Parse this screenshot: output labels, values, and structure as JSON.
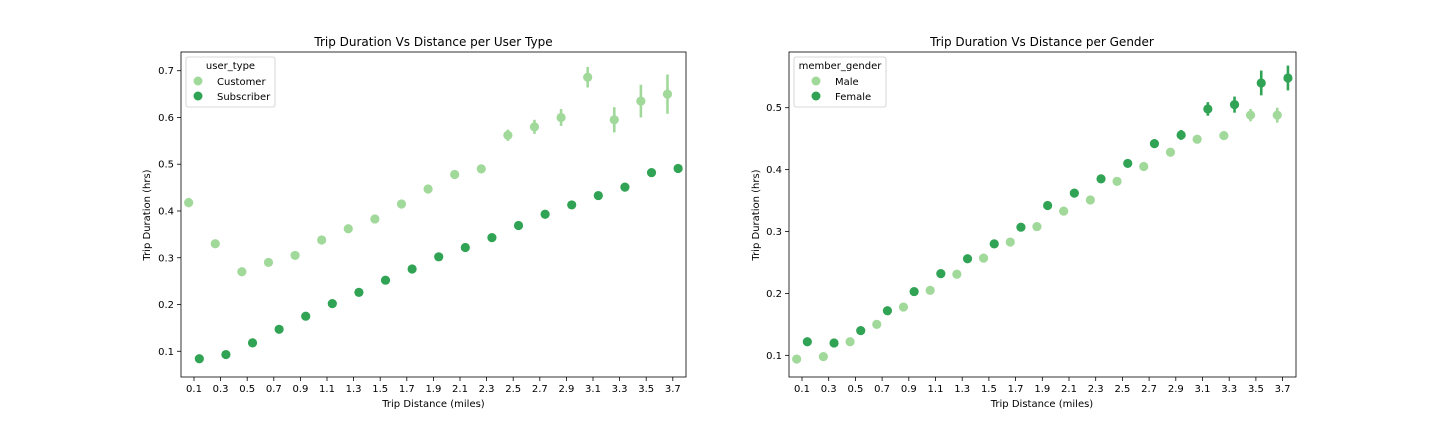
{
  "chart_data": [
    {
      "type": "scatter",
      "title": "Trip Duration Vs Distance per User Type",
      "xlabel": "Trip Distance (miles)",
      "ylabel": "Trip Duration (hrs)",
      "x_ticks": [
        "0.1",
        "0.3",
        "0.5",
        "0.7",
        "0.9",
        "1.1",
        "1.3",
        "1.5",
        "1.7",
        "1.9",
        "2.1",
        "2.3",
        "2.5",
        "2.7",
        "2.9",
        "3.1",
        "3.3",
        "3.5",
        "3.7"
      ],
      "y_ticks": [
        0.1,
        0.2,
        0.3,
        0.4,
        0.5,
        0.6,
        0.7
      ],
      "ylim": [
        0.045,
        0.74
      ],
      "grid": false,
      "legend": {
        "title": "user_type",
        "position": "top-left"
      },
      "series": [
        {
          "name": "Customer",
          "color": "#a1d99b",
          "values": [
            0.418,
            0.33,
            0.27,
            0.29,
            0.305,
            0.338,
            0.362,
            0.383,
            0.415,
            0.447,
            0.478,
            0.49,
            0.562,
            0.58,
            0.6,
            0.686,
            0.595,
            0.635,
            0.65
          ],
          "err": [
            0.01,
            0.006,
            0.005,
            0.004,
            0.004,
            0.004,
            0.004,
            0.004,
            0.005,
            0.005,
            0.006,
            0.009,
            0.012,
            0.015,
            0.018,
            0.022,
            0.027,
            0.035,
            0.042
          ]
        },
        {
          "name": "Subscriber",
          "color": "#31a354",
          "values": [
            0.084,
            0.093,
            0.118,
            0.147,
            0.175,
            0.202,
            0.226,
            0.252,
            0.276,
            0.302,
            0.322,
            0.343,
            0.369,
            0.393,
            0.413,
            0.433,
            0.451,
            0.482,
            0.491
          ],
          "err": [
            0.002,
            0.002,
            0.002,
            0.002,
            0.002,
            0.002,
            0.002,
            0.002,
            0.002,
            0.002,
            0.002,
            0.003,
            0.003,
            0.003,
            0.004,
            0.004,
            0.005,
            0.007,
            0.008
          ]
        }
      ]
    },
    {
      "type": "scatter",
      "title": "Trip Duration Vs Distance per Gender",
      "xlabel": "Trip Distance (miles)",
      "ylabel": "Trip Duration (hrs)",
      "x_ticks": [
        "0.1",
        "0.3",
        "0.5",
        "0.7",
        "0.9",
        "1.1",
        "1.3",
        "1.5",
        "1.7",
        "1.9",
        "2.1",
        "2.3",
        "2.5",
        "2.7",
        "2.9",
        "3.1",
        "3.3",
        "3.5",
        "3.7"
      ],
      "y_ticks": [
        0.1,
        0.2,
        0.3,
        0.4,
        0.5
      ],
      "ylim": [
        0.065,
        0.59
      ],
      "grid": false,
      "legend": {
        "title": "member_gender",
        "position": "top-left"
      },
      "series": [
        {
          "name": "Male",
          "color": "#a1d99b",
          "values": [
            0.094,
            0.098,
            0.122,
            0.15,
            0.178,
            0.205,
            0.231,
            0.257,
            0.283,
            0.308,
            0.333,
            0.351,
            0.381,
            0.405,
            0.428,
            0.449,
            0.455,
            0.488,
            0.488
          ],
          "err": [
            0.002,
            0.002,
            0.002,
            0.002,
            0.002,
            0.002,
            0.002,
            0.002,
            0.002,
            0.002,
            0.003,
            0.003,
            0.003,
            0.003,
            0.004,
            0.006,
            0.007,
            0.01,
            0.012
          ]
        },
        {
          "name": "Female",
          "color": "#31a354",
          "values": [
            0.122,
            0.12,
            0.14,
            0.172,
            0.203,
            0.232,
            0.256,
            0.28,
            0.307,
            0.342,
            0.362,
            0.385,
            0.41,
            0.442,
            0.456,
            0.498,
            0.505,
            0.54,
            0.548
          ],
          "err": [
            0.003,
            0.003,
            0.003,
            0.003,
            0.003,
            0.003,
            0.003,
            0.003,
            0.004,
            0.004,
            0.005,
            0.005,
            0.006,
            0.007,
            0.008,
            0.011,
            0.013,
            0.02,
            0.02
          ]
        }
      ]
    }
  ]
}
